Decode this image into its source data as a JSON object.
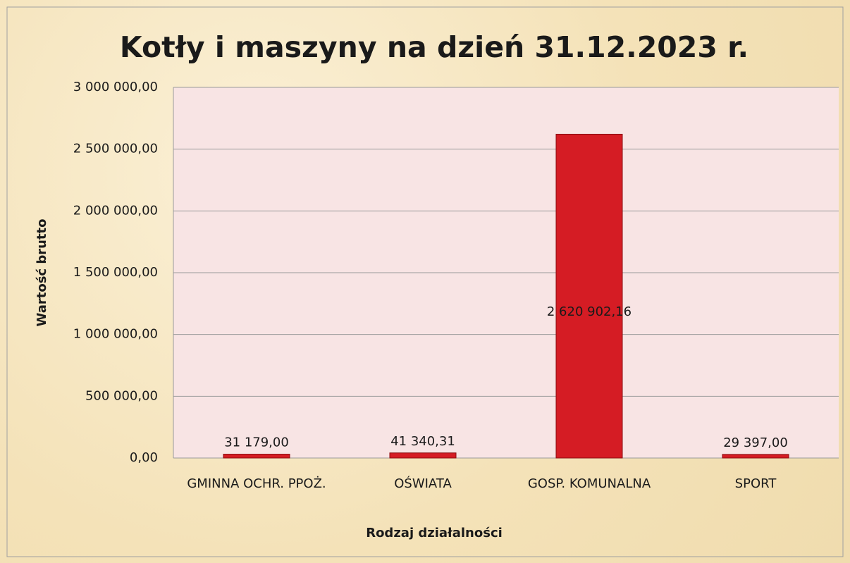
{
  "chart_data": {
    "type": "bar",
    "title": "Kotły i maszyny na dzień 31.12.2023 r.",
    "xlabel": "Rodzaj działalności",
    "ylabel": "Wartość brutto",
    "categories": [
      "GMINNA OCHR. PPOŻ.",
      "OŚWIATA",
      "GOSP. KOMUNALNA",
      "SPORT"
    ],
    "values": [
      31179.0,
      41340.31,
      2620902.16,
      29397.0
    ],
    "value_labels": [
      "31 179,00",
      "41 340,31",
      "2 620 902,16",
      "29 397,00"
    ],
    "color": "#d51c24",
    "ylim": [
      0,
      3000000
    ],
    "yticks": [
      {
        "value": 0,
        "label": "0,00"
      },
      {
        "value": 500000,
        "label": "500 000,00"
      },
      {
        "value": 1000000,
        "label": "1 000 000,00"
      },
      {
        "value": 1500000,
        "label": "1 500 000,00"
      },
      {
        "value": 2000000,
        "label": "2 000 000,00"
      },
      {
        "value": 2500000,
        "label": "2 500 000,00"
      },
      {
        "value": 3000000,
        "label": "3 000 000,00"
      }
    ],
    "grid": true
  }
}
